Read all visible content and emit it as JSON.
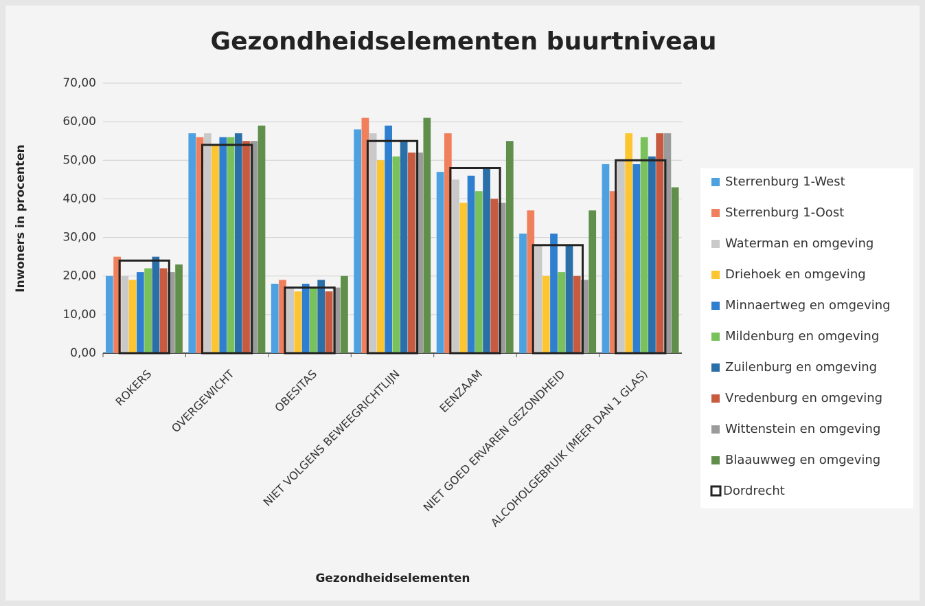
{
  "chart_data": {
    "type": "bar",
    "title": "Gezondheidselementen buurtniveau",
    "y_label": "Inwoners in procenten",
    "x_label": "Gezondheidselementen",
    "categories": [
      "ROKERS",
      "OVERGEWICHT",
      "OBESITAS",
      "NIET VOLGENS BEWEEGRICHTLIJN",
      "EENZAAM",
      "NIET GOED ERVAREN GEZONDHEID",
      "ALCOHOLGEBRUIK (MEER DAN 1 GLAS)"
    ],
    "series": [
      {
        "name": "Sterrenburg 1-West",
        "color": "#4ea1e0",
        "values": [
          20,
          57,
          18,
          58,
          47,
          31,
          49
        ]
      },
      {
        "name": "Sterrenburg 1-Oost",
        "color": "#f07f5c",
        "values": [
          25,
          56,
          19,
          61,
          57,
          37,
          42
        ]
      },
      {
        "name": "Waterman en omgeving",
        "color": "#c9c9c9",
        "values": [
          20,
          57,
          17,
          57,
          45,
          28,
          50
        ]
      },
      {
        "name": "Driehoek en omgeving",
        "color": "#fdc52f",
        "values": [
          19,
          54,
          16,
          50,
          39,
          20,
          57
        ]
      },
      {
        "name": "Minnaertweg en omgeving",
        "color": "#2f7fd0",
        "values": [
          21,
          56,
          18,
          59,
          46,
          31,
          49
        ]
      },
      {
        "name": "Mildenburg en omgeving",
        "color": "#79c15a",
        "values": [
          22,
          56,
          17,
          51,
          42,
          21,
          56
        ]
      },
      {
        "name": "Zuilenburg en omgeving",
        "color": "#2b6fa8",
        "values": [
          25,
          57,
          19,
          55,
          48,
          28,
          51
        ]
      },
      {
        "name": "Vredenburg en omgeving",
        "color": "#c85a3f",
        "values": [
          22,
          55,
          16,
          52,
          40,
          20,
          57
        ]
      },
      {
        "name": "Wittenstein en omgeving",
        "color": "#9b9b9b",
        "values": [
          21,
          55,
          17,
          52,
          39,
          19,
          57
        ]
      },
      {
        "name": "Blaauwweg en omgeving",
        "color": "#5f8f4a",
        "values": [
          23,
          59,
          20,
          61,
          55,
          37,
          43
        ]
      },
      {
        "name": "Dordrecht",
        "color": "#222222",
        "outline": true,
        "values": [
          24,
          54,
          17,
          55,
          48,
          28,
          50
        ]
      }
    ],
    "ylim": [
      0,
      70
    ],
    "yticks": [
      {
        "value": 0,
        "label": "0,00"
      },
      {
        "value": 10,
        "label": "10,00"
      },
      {
        "value": 20,
        "label": "20,00"
      },
      {
        "value": 30,
        "label": "30,00"
      },
      {
        "value": 40,
        "label": "40,00"
      },
      {
        "value": 50,
        "label": "50,00"
      },
      {
        "value": 60,
        "label": "60,00"
      },
      {
        "value": 70,
        "label": "70,00"
      }
    ],
    "grid": true,
    "legend": "right"
  }
}
